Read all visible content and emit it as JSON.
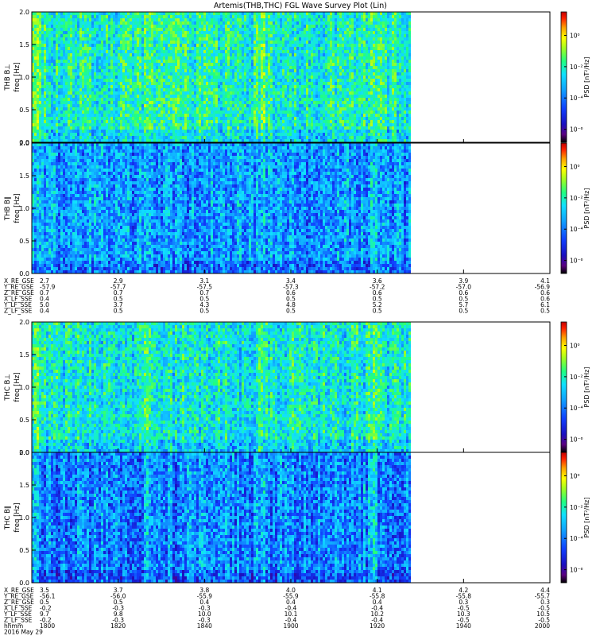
{
  "title": "Artemis(THB,THC) FGL Wave Survey Plot (Lin)",
  "colors": {
    "background": "#ffffff",
    "axis": "#000000",
    "colorscale": [
      "#000000",
      "#5a0080",
      "#1a10c0",
      "#1040ff",
      "#10a0ff",
      "#10e0ff",
      "#20ff80",
      "#a0ff20",
      "#ffff00",
      "#ffa000",
      "#ff2000",
      "#c00000"
    ]
  },
  "chart_data": [
    {
      "type": "heatmap",
      "ylabel": "THB B⊥",
      "yunit": "freq [Hz]",
      "yticks": [
        "0.0",
        "0.5",
        "1.0",
        "1.5",
        "2.0"
      ],
      "ylim": [
        0,
        2.0
      ],
      "colorbar_label": "PSD [nT²/Hz]",
      "colorbar_ticks": [
        "10⁰",
        "10⁻²",
        "10⁻⁴",
        "10⁻⁶"
      ],
      "level": 0.5
    },
    {
      "type": "heatmap",
      "ylabel": "THB B∥",
      "yunit": "freq [Hz]",
      "yticks": [
        "0.0",
        "0.5",
        "1.0",
        "1.5",
        "2.0"
      ],
      "ylim": [
        0,
        2.0
      ],
      "colorbar_label": "PSD [nT²/Hz]",
      "colorbar_ticks": [
        "10⁰",
        "10⁻²",
        "10⁻⁴",
        "10⁻⁶"
      ],
      "level": 0.36
    },
    {
      "type": "heatmap",
      "ylabel": "THC B⊥",
      "yunit": "freq [Hz]",
      "yticks": [
        "0.0",
        "0.5",
        "1.0",
        "1.5",
        "2.0"
      ],
      "ylim": [
        0,
        2.0
      ],
      "colorbar_label": "PSD [nT²/Hz]",
      "colorbar_ticks": [
        "10⁰",
        "10⁻²",
        "10⁻⁴",
        "10⁻⁶"
      ],
      "level": 0.48
    },
    {
      "type": "heatmap",
      "ylabel": "THC B∥",
      "yunit": "freq [Hz]",
      "yticks": [
        "0.0",
        "0.5",
        "1.0",
        "1.5",
        "2.0"
      ],
      "ylim": [
        0,
        2.0
      ],
      "colorbar_label": "PSD [nT²/Hz]",
      "colorbar_ticks": [
        "10⁰",
        "10⁻²",
        "10⁻⁴",
        "10⁻⁶"
      ],
      "level": 0.34
    }
  ],
  "ephemeris_thb": {
    "labels": [
      "X_RE_GSE",
      "Y_RE_GSE",
      "Z_RE_GSE",
      "X_LF_SSE",
      "Y_LF_SSE",
      "Z_LF_SSE"
    ],
    "columns": [
      [
        "2.7",
        "-57.9",
        "0.7",
        "0.4",
        "5.0",
        "0.4"
      ],
      [
        "2.9",
        "-57.7",
        "0.7",
        "0.5",
        "3.7",
        "0.5"
      ],
      [
        "3.1",
        "-57.5",
        "0.7",
        "0.5",
        "4.3",
        "0.5"
      ],
      [
        "3.4",
        "-57.3",
        "0.6",
        "0.5",
        "4.8",
        "0.5"
      ],
      [
        "3.6",
        "-57.2",
        "0.6",
        "0.5",
        "5.2",
        "0.5"
      ],
      [
        "3.9",
        "-57.0",
        "0.6",
        "0.5",
        "5.7",
        "0.5"
      ],
      [
        "4.1",
        "-56.9",
        "0.6",
        "0.6",
        "6.1",
        "0.5"
      ]
    ]
  },
  "ephemeris_thc": {
    "labels": [
      "X_RE_GSE",
      "Y_RE_GSE",
      "Z_RE_GSE",
      "X_LF_SSE",
      "Y_LF_SSE",
      "Z_LF_SSE",
      "hhmm",
      "2016 May 29"
    ],
    "columns": [
      [
        "3.5",
        "-56.1",
        "0.5",
        "-0.2",
        "9.7",
        "-0.2",
        "1800"
      ],
      [
        "3.7",
        "-56.0",
        "0.5",
        "-0.3",
        "9.8",
        "-0.3",
        "1820"
      ],
      [
        "3.8",
        "-55.9",
        "0.4",
        "-0.3",
        "10.0",
        "-0.3",
        "1840"
      ],
      [
        "4.0",
        "-55.9",
        "0.4",
        "-0.4",
        "10.1",
        "-0.4",
        "1900"
      ],
      [
        "4.1",
        "-55.8",
        "0.4",
        "-0.4",
        "10.2",
        "-0.4",
        "1920"
      ],
      [
        "4.2",
        "-55.8",
        "0.3",
        "-0.5",
        "10.3",
        "-0.5",
        "1940"
      ],
      [
        "4.4",
        "-55.7",
        "0.3",
        "-0.5",
        "10.5",
        "-0.5",
        "2000"
      ]
    ]
  }
}
